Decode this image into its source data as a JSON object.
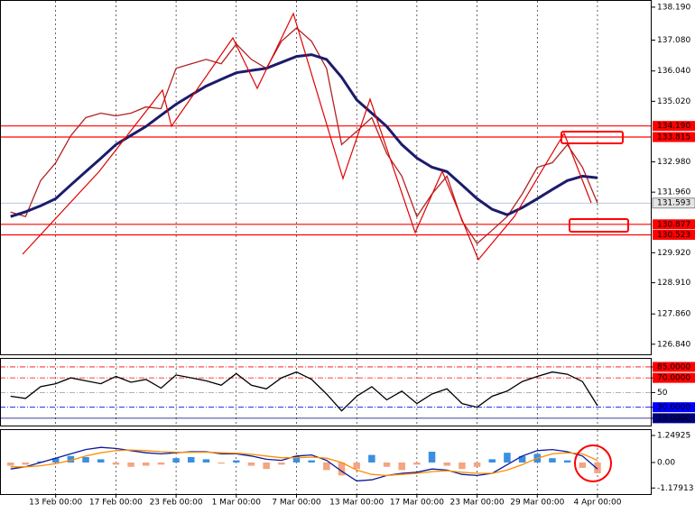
{
  "chart_data": [
    {
      "type": "line",
      "x": [
        -3,
        -2,
        -1,
        0,
        1,
        2,
        3,
        4,
        5,
        6,
        7,
        8,
        9,
        10,
        11,
        12,
        13,
        14,
        15,
        16,
        17,
        18,
        19,
        20,
        21,
        22,
        23,
        24,
        25,
        26,
        27,
        28,
        29,
        30,
        31,
        32,
        33,
        34,
        35,
        36
      ],
      "series": [
        {
          "color": "#b22222",
          "values": [
            131.29,
            131.14,
            132.35,
            132.95,
            133.86,
            134.47,
            134.62,
            134.53,
            134.62,
            134.83,
            134.77,
            136.13,
            136.28,
            136.43,
            136.28,
            136.95,
            136.43,
            136.13,
            137.04,
            137.49,
            137.04,
            136.13,
            133.56,
            134.01,
            134.47,
            133.26,
            132.5,
            131.14,
            131.9,
            132.5,
            130.99,
            130.23,
            130.68,
            131.14,
            131.9,
            132.8,
            132.95,
            133.56,
            132.8,
            131.593
          ]
        },
        {
          "color": "#1c1c6b",
          "values": [
            131.14,
            131.3,
            131.5,
            131.74,
            132.2,
            132.65,
            133.1,
            133.56,
            133.87,
            134.17,
            134.55,
            134.92,
            135.23,
            135.53,
            135.76,
            135.98,
            136.06,
            136.13,
            136.33,
            136.53,
            136.59,
            136.43,
            135.83,
            135.07,
            134.62,
            134.17,
            133.56,
            133.11,
            132.8,
            132.65,
            132.2,
            131.74,
            131.38,
            131.2,
            131.44,
            131.74,
            132.05,
            132.35,
            132.5,
            132.44
          ]
        }
      ],
      "xlim": [
        -3.7,
        39.6
      ],
      "xticks": [
        {
          "value": 0,
          "label": "13 Feb 00:00"
        },
        {
          "value": 4,
          "label": "17 Feb 00:00"
        },
        {
          "value": 8,
          "label": "23 Feb 00:00"
        },
        {
          "value": 12,
          "label": "1 Mar 00:00"
        },
        {
          "value": 16,
          "label": "7 Mar 00:00"
        },
        {
          "value": 20,
          "label": "13 Mar 00:00"
        },
        {
          "value": 24,
          "label": "17 Mar 00:00"
        },
        {
          "value": 28,
          "label": "23 Mar 00:00"
        },
        {
          "value": 32,
          "label": "29 Mar 00:00"
        },
        {
          "value": 36,
          "label": "4 Apr 00:00"
        }
      ],
      "ylim": [
        126.5,
        138.4
      ],
      "yticks": [
        {
          "value": 138.19,
          "label": "138.190"
        },
        {
          "value": 137.08,
          "label": "137.080"
        },
        {
          "value": 136.04,
          "label": "136.040"
        },
        {
          "value": 135.02,
          "label": "135.020"
        },
        {
          "value": 132.98,
          "label": "132.980"
        },
        {
          "value": 131.96,
          "label": "131.960"
        },
        {
          "value": 129.92,
          "label": "129.920"
        },
        {
          "value": 128.91,
          "label": "128.910"
        },
        {
          "value": 127.86,
          "label": "127.860"
        },
        {
          "value": 126.84,
          "label": "126.840"
        }
      ],
      "levels": [
        {
          "value": 134.19,
          "label": "134.190"
        },
        133.815,
        130.877,
        130.523
      ],
      "level_color": "#ff0000",
      "last_price": 131.593,
      "grid": true
    },
    {
      "type": "line",
      "x": [
        -3,
        -2,
        -1,
        0,
        1,
        2,
        3,
        4,
        5,
        6,
        7,
        8,
        9,
        10,
        11,
        12,
        13,
        14,
        15,
        16,
        17,
        18,
        19,
        20,
        21,
        22,
        23,
        24,
        25,
        26,
        27,
        28,
        29,
        30,
        31,
        32,
        33,
        34,
        35,
        36
      ],
      "series": [
        {
          "color": "#000000",
          "values": [
            45,
            42,
            58,
            62,
            70,
            66,
            62,
            72,
            64,
            68,
            56,
            74,
            70,
            66,
            60,
            76,
            60,
            55,
            70,
            78,
            68,
            48,
            25,
            45,
            58,
            40,
            52,
            35,
            48,
            55,
            35,
            30,
            45,
            52,
            65,
            72,
            78,
            75,
            65,
            32
          ]
        }
      ],
      "xlim": [
        -3.7,
        39.6
      ],
      "ylim": [
        5,
        96
      ],
      "yticks": [
        {
          "value": 85,
          "label": "85.0000"
        },
        {
          "value": 70,
          "label": "70.0000"
        },
        50,
        {
          "value": 30,
          "label": "30.0000"
        },
        {
          "value": 15,
          "label": "15.0000"
        }
      ],
      "ytick_colors": [
        "#ff0000",
        "#ff0000",
        "#999999",
        "#0000ff",
        "#000080"
      ]
    },
    {
      "type": "macd",
      "x": [
        -3,
        -2,
        -1,
        0,
        1,
        2,
        3,
        4,
        5,
        6,
        7,
        8,
        9,
        10,
        11,
        12,
        13,
        14,
        15,
        16,
        17,
        18,
        19,
        20,
        21,
        22,
        23,
        24,
        25,
        26,
        27,
        28,
        29,
        30,
        31,
        32,
        33,
        34,
        35,
        36
      ],
      "histogram": [
        -0.15,
        -0.1,
        0.05,
        0.2,
        0.3,
        0.25,
        0.15,
        -0.1,
        -0.2,
        -0.15,
        -0.1,
        0.2,
        0.25,
        0.15,
        -0.05,
        0.1,
        -0.15,
        -0.3,
        -0.1,
        0.3,
        0.1,
        -0.35,
        -0.6,
        -0.3,
        0.35,
        -0.2,
        -0.35,
        -0.1,
        0.5,
        -0.15,
        -0.3,
        -0.2,
        0.15,
        0.45,
        0.3,
        0.4,
        0.2,
        0.1,
        -0.25,
        -0.5
      ],
      "positive_color": "#3a8fe0",
      "negative_color": "#f4a582",
      "series": [
        {
          "color": "#0a1a9a",
          "values": [
            -0.3,
            -0.2,
            0,
            0.2,
            0.4,
            0.6,
            0.7,
            0.65,
            0.55,
            0.45,
            0.4,
            0.45,
            0.5,
            0.5,
            0.4,
            0.4,
            0.3,
            0.15,
            0.1,
            0.3,
            0.35,
            0.1,
            -0.4,
            -0.85,
            -0.8,
            -0.6,
            -0.5,
            -0.45,
            -0.3,
            -0.35,
            -0.55,
            -0.6,
            -0.5,
            -0.1,
            0.3,
            0.55,
            0.6,
            0.5,
            0.3,
            -0.3
          ]
        },
        {
          "color": "#ff8c00",
          "values": [
            -0.2,
            -0.2,
            -0.15,
            -0.05,
            0.1,
            0.3,
            0.45,
            0.55,
            0.58,
            0.55,
            0.5,
            0.47,
            0.47,
            0.48,
            0.45,
            0.43,
            0.38,
            0.3,
            0.22,
            0.22,
            0.25,
            0.2,
            0,
            -0.35,
            -0.55,
            -0.6,
            -0.55,
            -0.5,
            -0.42,
            -0.38,
            -0.45,
            -0.5,
            -0.5,
            -0.35,
            -0.1,
            0.2,
            0.4,
            0.45,
            0.4,
            0.1
          ]
        }
      ],
      "xlim": [
        -3.7,
        39.6
      ],
      "ylim": [
        -1.46,
        1.5
      ],
      "yticks": [
        1.24925,
        {
          "value": 0,
          "label": "0.00"
        },
        -1.17913
      ]
    }
  ]
}
